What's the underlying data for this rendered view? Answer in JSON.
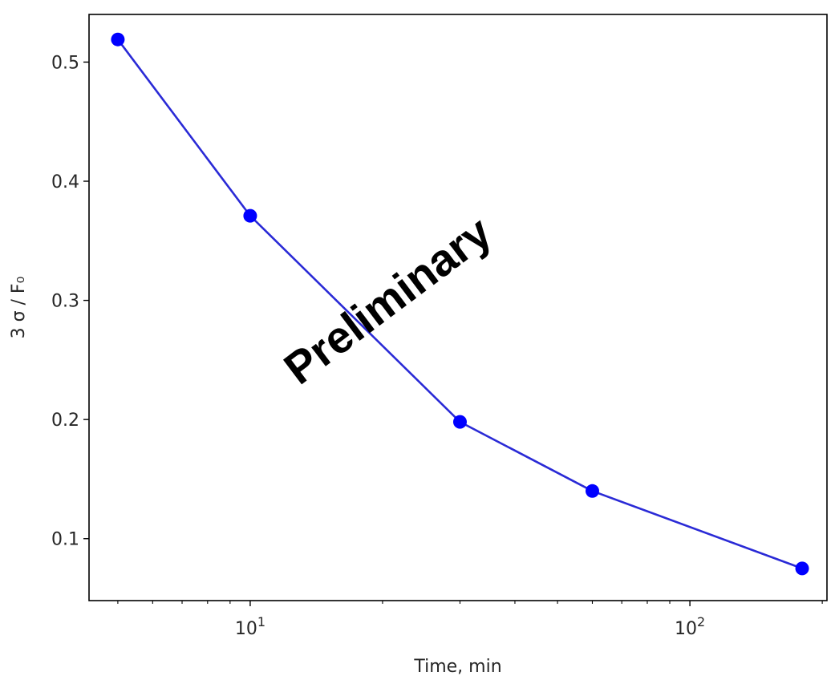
{
  "chart_data": {
    "type": "line",
    "x_scale": "log",
    "xlabel": "Time, min",
    "ylabel": "3 σ / F₀",
    "xlim": [
      4.3,
      205
    ],
    "ylim": [
      0.048,
      0.54
    ],
    "x_ticks": [
      {
        "value": 10,
        "base": "10",
        "exponent": "1"
      },
      {
        "value": 100,
        "base": "10",
        "exponent": "2"
      }
    ],
    "x_minor_ticks": [
      5,
      6,
      7,
      8,
      9,
      20,
      30,
      40,
      50,
      60,
      70,
      80,
      90,
      200
    ],
    "y_ticks": [
      {
        "value": 0.1,
        "label": "0.1"
      },
      {
        "value": 0.2,
        "label": "0.2"
      },
      {
        "value": 0.3,
        "label": "0.3"
      },
      {
        "value": 0.4,
        "label": "0.4"
      },
      {
        "value": 0.5,
        "label": "0.5"
      }
    ],
    "series": [
      {
        "color": "#0000ff",
        "line_color": "#2a2ad6",
        "marker": "circle",
        "x": [
          5,
          10,
          30,
          60,
          180
        ],
        "y": [
          0.519,
          0.371,
          0.198,
          0.14,
          0.075
        ]
      }
    ],
    "grid": false
  },
  "watermark": {
    "text": "Preliminary",
    "color": "#000000"
  }
}
